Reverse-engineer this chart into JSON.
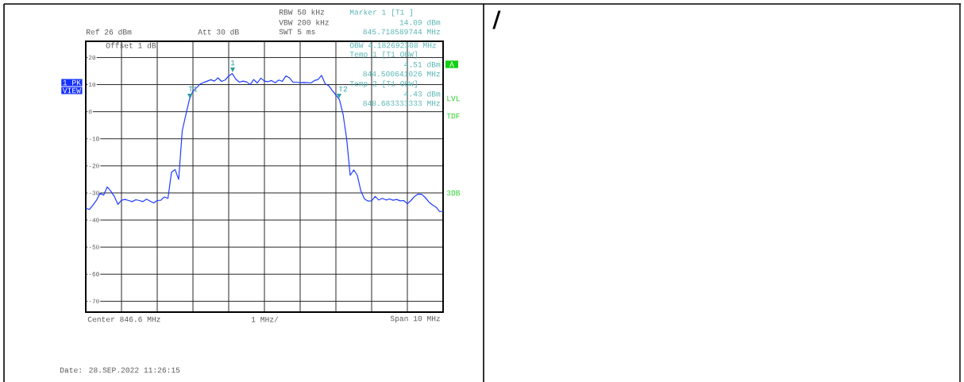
{
  "chart_data": {
    "type": "line",
    "color": "#1f3cff",
    "categories": [
      null,
      null,
      null,
      null,
      null,
      null,
      null,
      null,
      null,
      null,
      null,
      null,
      null,
      null,
      null,
      null,
      null,
      null,
      null,
      null,
      null,
      null,
      null,
      null,
      null,
      null,
      null,
      null,
      null,
      null,
      null,
      null,
      null,
      null,
      null,
      null,
      null,
      null,
      null,
      null,
      null,
      null,
      null,
      null,
      null,
      null,
      null,
      null,
      null,
      null,
      null,
      null,
      null,
      null,
      null,
      null,
      null,
      null,
      null,
      null,
      null,
      null,
      null,
      null,
      null,
      null,
      null,
      null,
      null,
      null,
      null,
      null,
      null,
      null,
      null,
      null,
      null,
      null,
      null,
      null,
      null,
      null,
      null,
      null,
      null,
      null,
      null,
      null,
      null,
      null,
      null,
      null,
      null,
      null,
      null,
      null,
      null,
      null,
      null,
      null,
      null
    ],
    "values": [
      -35.6,
      -36.1,
      -34.5,
      -32.7,
      -30.1,
      -30.8,
      -27.8,
      -29.3,
      -31.3,
      -34.2,
      -32.7,
      -32.4,
      -32.8,
      -33.2,
      -32.5,
      -32.8,
      -33.2,
      -32.3,
      -33.0,
      -33.7,
      -32.8,
      -32.7,
      -31.5,
      -32.0,
      -22.3,
      -21.4,
      -25.0,
      -7.0,
      -1.2,
      4.5,
      7.7,
      8.8,
      10.2,
      10.8,
      11.3,
      11.8,
      11.3,
      12.5,
      11.2,
      11.7,
      13.2,
      14.1,
      12.0,
      10.9,
      11.3,
      11.0,
      10.0,
      11.9,
      10.6,
      12.4,
      11.3,
      11.1,
      11.5,
      10.7,
      11.7,
      11.2,
      13.2,
      12.5,
      10.9,
      10.9,
      10.7,
      10.8,
      10.7,
      10.6,
      11.5,
      11.9,
      13.4,
      10.3,
      9.6,
      7.8,
      6.2,
      4.4,
      -0.9,
      -9.9,
      -23.5,
      -21.5,
      -23.5,
      -29.3,
      -32.2,
      -33.0,
      -32.9,
      -31.3,
      -32.6,
      -32.0,
      -32.6,
      -32.2,
      -32.7,
      -32.4,
      -32.9,
      -32.8,
      -34.0,
      -32.8,
      -31.3,
      -30.4,
      -30.5,
      -31.7,
      -33.3,
      -34.4,
      -35.2,
      -36.8,
      -36.9
    ],
    "ylim": [
      -74,
      26
    ],
    "yticks": [
      -70,
      -60,
      -50,
      -40,
      -30,
      -20,
      -10,
      0,
      10,
      20
    ],
    "grid": true,
    "annotations": [
      "RBW 50 kHz",
      "VBW 200 kHz",
      "SWT 5 ms",
      "Ref 26 dBm",
      "Att 30 dB",
      "Offset 1 dB",
      "Marker 1 [T1 ]",
      "14.09 dBm",
      "845.718589744 MHz",
      "OBW 4.182692308 MHz",
      "Temp 1 [T1 OBW]",
      "4.51 dBm",
      "844.500641026 MHz",
      "Temp 2 [T1 OBW]",
      "4.43 dBm",
      "848.683333333 MHz",
      "1 PK",
      "VIEW",
      "A",
      "LVL",
      "TDF",
      "3DB",
      "Center 846.6 MHz",
      "1 MHz/",
      "Span 10 MHz",
      "Date: 28.SEP.2022 11:26:15",
      "/",
      "1",
      "T1",
      "T2"
    ]
  }
}
